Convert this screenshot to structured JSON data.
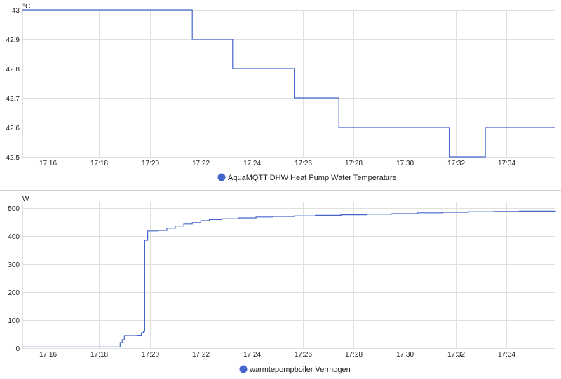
{
  "chart_data": [
    {
      "type": "line",
      "unit_label": "°C",
      "ylim": [
        42.5,
        43
      ],
      "yticks": [
        42.5,
        42.6,
        42.7,
        42.8,
        42.9,
        43
      ],
      "ytick_labels": [
        "42.5",
        "42.6",
        "42.7",
        "42.8",
        "42.9",
        "43"
      ],
      "xlim": [
        "17:15:00",
        "17:35:55"
      ],
      "xticks": [
        "17:16",
        "17:18",
        "17:20",
        "17:22",
        "17:24",
        "17:26",
        "17:28",
        "17:30",
        "17:32",
        "17:34"
      ],
      "grid": true,
      "legend": "bottom-center",
      "series": [
        {
          "name": "AquaMQTT DHW Heat Pump Water Temperature",
          "color": "#4466cc",
          "step": true,
          "points": [
            [
              "17:15:00",
              43.0
            ],
            [
              "17:21:40",
              42.9
            ],
            [
              "17:23:15",
              42.8
            ],
            [
              "17:25:40",
              42.7
            ],
            [
              "17:27:25",
              42.6
            ],
            [
              "17:31:45",
              42.5
            ],
            [
              "17:33:10",
              42.6
            ],
            [
              "17:35:55",
              42.6
            ]
          ]
        }
      ]
    },
    {
      "type": "line",
      "unit_label": "W",
      "ylim": [
        0,
        520
      ],
      "yticks": [
        0,
        100,
        200,
        300,
        400,
        500
      ],
      "ytick_labels": [
        "0",
        "100",
        "200",
        "300",
        "400",
        "500"
      ],
      "xlim": [
        "17:15:00",
        "17:35:55"
      ],
      "xticks": [
        "17:16",
        "17:18",
        "17:20",
        "17:22",
        "17:24",
        "17:26",
        "17:28",
        "17:30",
        "17:32",
        "17:34"
      ],
      "grid": true,
      "legend": "bottom-center",
      "series": [
        {
          "name": "warmtepompboiler Vermogen",
          "color": "#4466cc",
          "step": true,
          "points": [
            [
              "17:15:00",
              4
            ],
            [
              "17:18:45",
              4
            ],
            [
              "17:18:50",
              20
            ],
            [
              "17:18:55",
              30
            ],
            [
              "17:19:00",
              45
            ],
            [
              "17:19:30",
              46
            ],
            [
              "17:19:40",
              55
            ],
            [
              "17:19:45",
              60
            ],
            [
              "17:19:48",
              385
            ],
            [
              "17:19:55",
              418
            ],
            [
              "17:20:20",
              420
            ],
            [
              "17:20:40",
              428
            ],
            [
              "17:21:00",
              436
            ],
            [
              "17:21:20",
              443
            ],
            [
              "17:21:40",
              448
            ],
            [
              "17:22:00",
              455
            ],
            [
              "17:22:20",
              459
            ],
            [
              "17:22:50",
              462
            ],
            [
              "17:23:30",
              465
            ],
            [
              "17:24:10",
              468
            ],
            [
              "17:24:50",
              470
            ],
            [
              "17:25:40",
              472
            ],
            [
              "17:26:30",
              474
            ],
            [
              "17:27:30",
              476
            ],
            [
              "17:28:30",
              478
            ],
            [
              "17:29:30",
              480
            ],
            [
              "17:30:30",
              483
            ],
            [
              "17:31:30",
              485
            ],
            [
              "17:32:30",
              487
            ],
            [
              "17:33:30",
              488
            ],
            [
              "17:34:30",
              489
            ],
            [
              "17:35:55",
              490
            ]
          ]
        }
      ]
    }
  ]
}
